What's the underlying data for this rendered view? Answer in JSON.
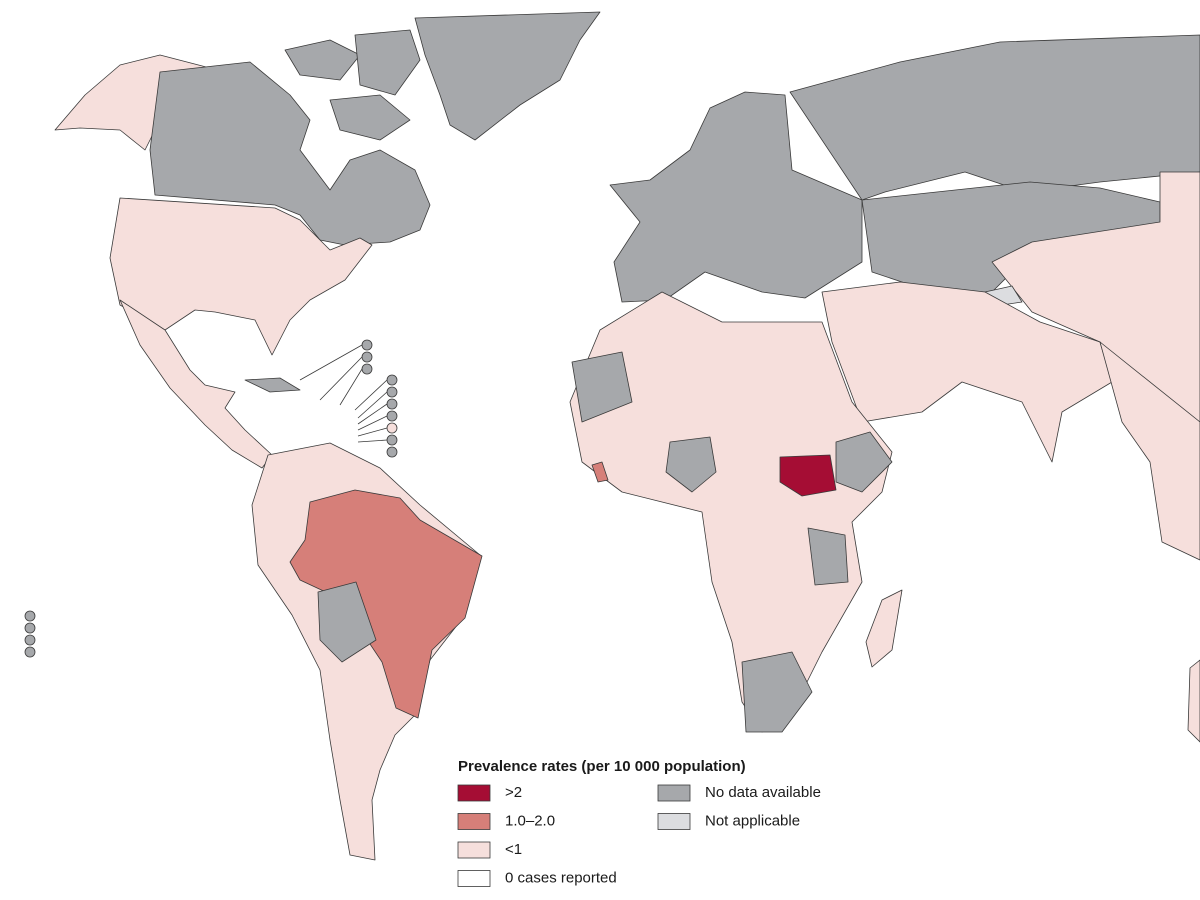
{
  "legend": {
    "title": "Prevalence rates (per 10 000 population)",
    "items": [
      {
        "label": ">2",
        "color": "#a50d34"
      },
      {
        "label": "1.0–2.0",
        "color": "#d67f79"
      },
      {
        "label": "<1",
        "color": "#f6dfdc"
      },
      {
        "label": "0 cases reported",
        "color": "#ffffff"
      },
      {
        "label": "No data available",
        "color": "#a6a8ab"
      },
      {
        "label": "Not applicable",
        "color": "#dcdde0"
      }
    ]
  }
}
